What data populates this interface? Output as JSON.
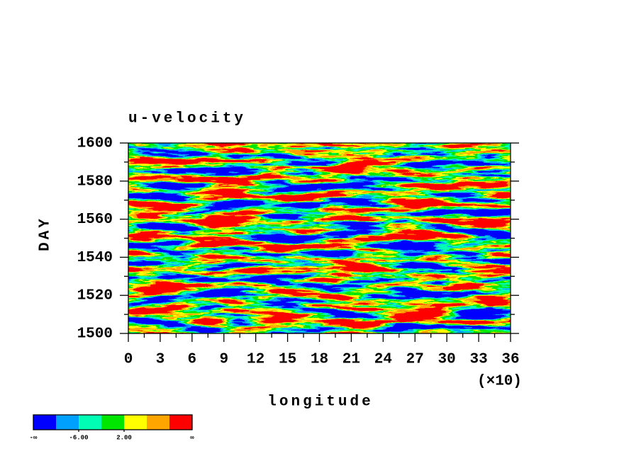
{
  "chart_data": {
    "type": "filled-contour",
    "title": "u-velocity",
    "xlabel": "longitude",
    "xlabel_multiplier": "(×10)",
    "ylabel": "DAY",
    "xlim": [
      0,
      36
    ],
    "xticks": [
      0,
      3,
      6,
      9,
      12,
      15,
      18,
      21,
      24,
      27,
      30,
      33,
      36
    ],
    "ylim": [
      1500,
      1600
    ],
    "yticks": [
      1500,
      1520,
      1540,
      1560,
      1580,
      1600
    ],
    "colorbar": {
      "colors": [
        "#0000ff",
        "#00a0ff",
        "#00ffb4",
        "#00e600",
        "#ffff00",
        "#ffa500",
        "#ff0000"
      ],
      "levels": [
        -10,
        -6,
        -2,
        2,
        6,
        10
      ],
      "ticks": [
        {
          "value": -6,
          "label": "-6.00"
        },
        {
          "value": 2,
          "label": "2.00"
        }
      ],
      "low_label": "-∞",
      "high_label": "∞"
    }
  }
}
